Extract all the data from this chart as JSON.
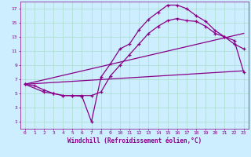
{
  "xlabel": "Windchill (Refroidissement éolien,°C)",
  "bg_color": "#cceeff",
  "line_color": "#880088",
  "grid_color": "#aaddcc",
  "xlim": [
    -0.5,
    23.5
  ],
  "ylim": [
    0,
    18
  ],
  "xticks": [
    0,
    1,
    2,
    3,
    4,
    5,
    6,
    7,
    8,
    9,
    10,
    11,
    12,
    13,
    14,
    15,
    16,
    17,
    18,
    19,
    20,
    21,
    22,
    23
  ],
  "yticks": [
    1,
    3,
    5,
    7,
    9,
    11,
    13,
    15,
    17
  ],
  "series": [
    {
      "x": [
        0,
        1,
        2,
        3,
        4,
        5,
        6,
        7,
        8,
        9,
        10,
        11,
        12,
        13,
        14,
        15,
        16,
        17,
        18,
        19,
        20,
        21,
        22,
        23
      ],
      "y": [
        6.3,
        6.1,
        5.5,
        5.0,
        4.7,
        4.7,
        4.6,
        1.0,
        7.3,
        9.2,
        11.3,
        12.0,
        14.0,
        15.5,
        16.5,
        17.5,
        17.5,
        17.0,
        16.0,
        15.2,
        13.9,
        13.0,
        12.0,
        11.3
      ]
    },
    {
      "x": [
        0,
        2,
        3,
        4,
        5,
        6,
        7,
        8,
        9,
        10,
        11,
        12,
        13,
        14,
        15,
        16,
        17,
        18,
        19,
        20,
        21,
        22,
        23
      ],
      "y": [
        6.3,
        5.2,
        5.0,
        4.7,
        4.7,
        4.7,
        4.7,
        5.2,
        7.5,
        9.0,
        10.5,
        12.0,
        13.5,
        14.5,
        15.3,
        15.6,
        15.3,
        15.2,
        14.5,
        13.5,
        13.0,
        12.5,
        8.0
      ]
    },
    {
      "x": [
        0,
        23
      ],
      "y": [
        6.3,
        13.5
      ]
    },
    {
      "x": [
        0,
        23
      ],
      "y": [
        6.3,
        8.2
      ]
    }
  ]
}
